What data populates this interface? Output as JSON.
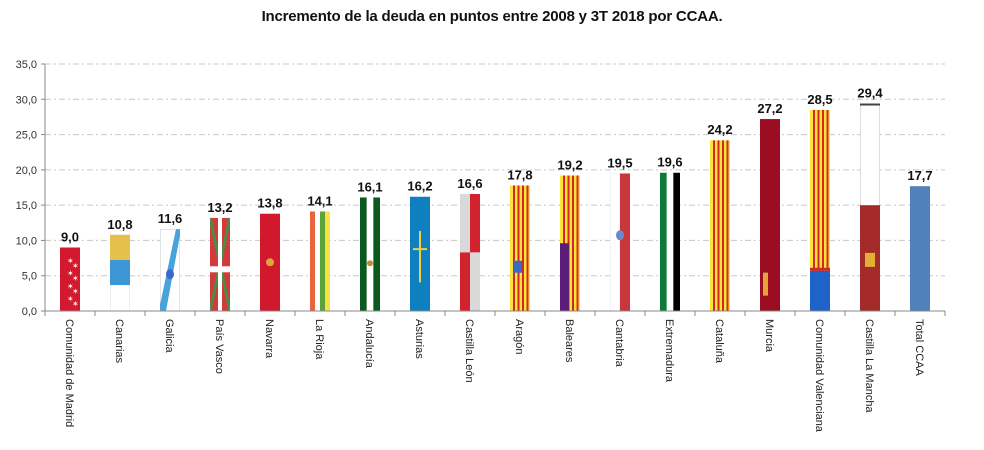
{
  "chart_data": {
    "type": "bar",
    "title": "Incremento de la deuda en puntos entre 2008 y 3T 2018 por CCAA.",
    "xlabel": "",
    "ylabel": "",
    "ylim": [
      0,
      35
    ],
    "yticks": [
      "0,0",
      "5,0",
      "10,0",
      "15,0",
      "20,0",
      "25,0",
      "30,0",
      "35,0"
    ],
    "ytick_values": [
      0,
      5,
      10,
      15,
      20,
      25,
      30,
      35
    ],
    "grid": true,
    "legend": "none",
    "categories": [
      "Comunidad de Madrid",
      "Canarias",
      "Galicia",
      "País Vasco",
      "Navarra",
      "La Rioja",
      "Andalucía",
      "Asturias",
      "Castilla León",
      "Aragón",
      "Baleares",
      "Cantabria",
      "Extremadura",
      "Cataluña",
      "Murcia",
      "Comunidad Valenciana",
      "Castilla La Mancha",
      "Total CCAA"
    ],
    "values": [
      9.0,
      10.8,
      11.6,
      13.2,
      13.8,
      14.1,
      16.1,
      16.2,
      16.6,
      17.8,
      19.2,
      19.5,
      19.6,
      24.2,
      27.2,
      28.5,
      29.4,
      17.7
    ],
    "data_labels": [
      "9,0",
      "10,8",
      "11,6",
      "13,2",
      "13,8",
      "14,1",
      "16,1",
      "16,2",
      "16,6",
      "17,8",
      "19,2",
      "19,5",
      "19,6",
      "24,2",
      "27,2",
      "28,5",
      "29,4",
      "17,7"
    ],
    "bar_fills": [
      "flag-madrid",
      "flag-canarias",
      "flag-galicia",
      "flag-pais-vasco",
      "flag-navarra",
      "flag-la-rioja",
      "flag-andalucia",
      "flag-asturias",
      "flag-castilla-leon",
      "flag-aragon",
      "flag-baleares",
      "flag-cantabria",
      "flag-extremadura",
      "flag-cataluna",
      "flag-murcia",
      "flag-comunidad-valenciana",
      "flag-castilla-la-mancha",
      "solid"
    ],
    "total_color": "#4f81bd"
  }
}
